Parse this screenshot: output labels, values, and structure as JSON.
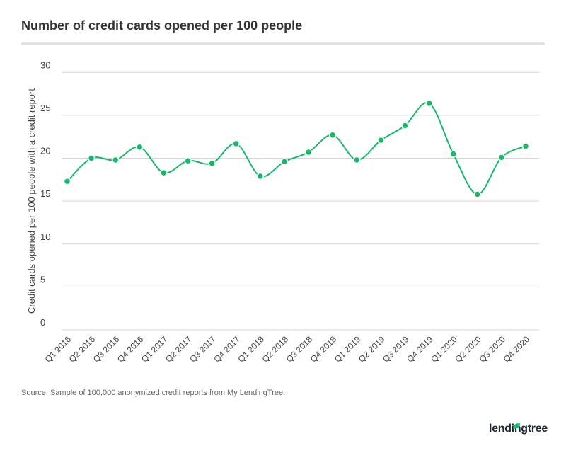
{
  "chart_data": {
    "type": "line",
    "title": "Number of credit cards opened per 100 people",
    "xlabel": "",
    "ylabel": "Credit cards opened per 100 people with a credit report",
    "ylim": [
      0,
      30
    ],
    "yticks": [
      0,
      5,
      10,
      15,
      20,
      25,
      30
    ],
    "grid": true,
    "categories": [
      "Q1 2016",
      "Q2 2016",
      "Q3 2016",
      "Q4 2016",
      "Q1 2017",
      "Q2 2017",
      "Q3 2017",
      "Q4 2017",
      "Q1 2018",
      "Q2 2018",
      "Q3 2018",
      "Q4 2018",
      "Q1 2019",
      "Q2 2019",
      "Q3 2019",
      "Q4 2019",
      "Q1 2020",
      "Q2 2020",
      "Q3 2020",
      "Q4 2020"
    ],
    "values": [
      17.3,
      20.0,
      19.8,
      21.3,
      18.3,
      19.7,
      19.4,
      21.7,
      17.9,
      19.6,
      20.7,
      22.7,
      19.8,
      22.1,
      23.8,
      26.4,
      20.5,
      15.8,
      20.1,
      21.4
    ],
    "color": "#16b96a"
  },
  "source": "Source: Sample of 100,000 anonymized credit reports from My LendingTree.",
  "logo": "lendingtree"
}
